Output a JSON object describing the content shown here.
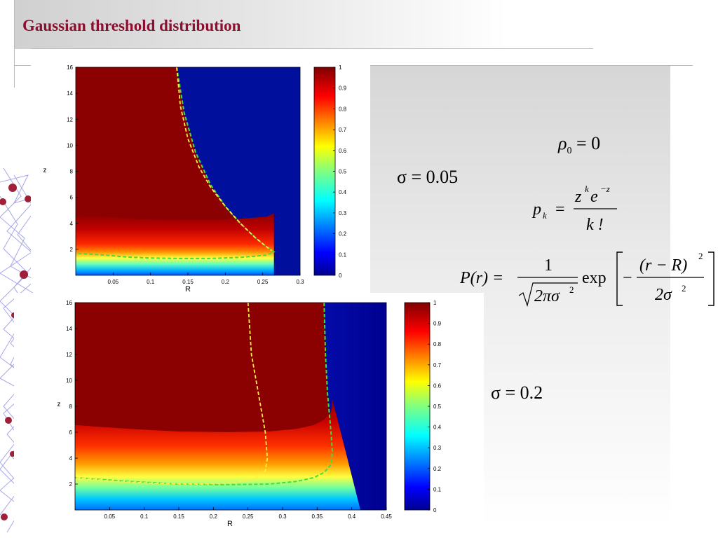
{
  "slide": {
    "title": "Gaussian threshold distribution"
  },
  "formulas": {
    "rho0": {
      "lhs": "ρ",
      "sub": "0",
      "rhs": "= 0"
    },
    "sigma_top": "σ = 0.05",
    "sigma_bottom": "σ = 0.2",
    "pk": {
      "lhs": "p",
      "sub": "k",
      "num": "z",
      "num_sup_k": "k",
      "num_e": "e",
      "num_sup": "−z",
      "den": "k !"
    },
    "gaussian": {
      "lhs": "P(r) =",
      "one": "1",
      "sqrt_inner": "2πσ",
      "sq": "2",
      "exp": "exp",
      "minus": "−",
      "num": "(r − R)",
      "den": "2σ"
    }
  },
  "chart_data": [
    {
      "type": "heatmap",
      "xlabel": "R",
      "ylabel": "z",
      "xlim": [
        0,
        0.3
      ],
      "ylim": [
        0,
        16
      ],
      "x_ticks": [
        0.05,
        0.1,
        0.15,
        0.2,
        0.25,
        0.3
      ],
      "x_tick_labels": [
        "0.05",
        "0.1",
        "0.15",
        "0.2",
        "0.25",
        "0.3"
      ],
      "y_ticks": [
        2,
        4,
        6,
        8,
        10,
        12,
        14,
        16
      ],
      "y_tick_labels": [
        "2",
        "4",
        "6",
        "8",
        "10",
        "12",
        "14",
        "16"
      ],
      "colorbar": {
        "range": [
          0,
          1
        ],
        "ticks": [
          "0",
          "0.1",
          "0.2",
          "0.3",
          "0.4",
          "0.5",
          "0.6",
          "0.7",
          "0.8",
          "0.9",
          "1"
        ]
      },
      "high_region_boundary": {
        "R": [
          0.135,
          0.145,
          0.16,
          0.18,
          0.2,
          0.22,
          0.24,
          0.255,
          0.265,
          0.255,
          0.22,
          0.18,
          0.14,
          0.1,
          0.07,
          0.04,
          0.0
        ],
        "z": [
          16,
          12.5,
          9.5,
          7,
          5.3,
          4.0,
          2.9,
          2.2,
          1.8,
          1.55,
          1.38,
          1.3,
          1.3,
          1.33,
          1.4,
          1.55,
          1.7
        ]
      },
      "yellow_curve": {
        "R": [
          0.135,
          0.14,
          0.15,
          0.165,
          0.18,
          0.2,
          0.22,
          0.24,
          0.255,
          0.262
        ],
        "z": [
          16,
          13,
          10.5,
          8.3,
          6.8,
          5.3,
          4.0,
          2.9,
          2.2,
          1.9
        ]
      }
    },
    {
      "type": "heatmap",
      "xlabel": "R",
      "ylabel": "z",
      "xlim": [
        0,
        0.45
      ],
      "ylim": [
        0,
        16
      ],
      "x_ticks": [
        0.05,
        0.1,
        0.15,
        0.2,
        0.25,
        0.3,
        0.35,
        0.4,
        0.45
      ],
      "x_tick_labels": [
        "0.05",
        "0.1",
        "0.15",
        "0.2",
        "0.25",
        "0.3",
        "0.35",
        "0.4",
        "0.45"
      ],
      "y_ticks": [
        2,
        4,
        6,
        8,
        10,
        12,
        14,
        16
      ],
      "y_tick_labels": [
        "2",
        "4",
        "6",
        "8",
        "10",
        "12",
        "14",
        "16"
      ],
      "colorbar": {
        "range": [
          0,
          1
        ],
        "ticks": [
          "0",
          "0.1",
          "0.2",
          "0.3",
          "0.4",
          "0.5",
          "0.6",
          "0.7",
          "0.8",
          "0.9",
          "1"
        ]
      },
      "high_region_boundary": {
        "R": [
          0.36,
          0.362,
          0.365,
          0.37,
          0.372,
          0.37,
          0.36,
          0.345,
          0.32,
          0.28,
          0.22,
          0.15,
          0.08,
          0.0
        ],
        "z": [
          16,
          12,
          9,
          6,
          4.5,
          3.5,
          2.9,
          2.5,
          2.2,
          2.0,
          1.95,
          2.0,
          2.2,
          2.5
        ]
      },
      "yellow_curve": {
        "R": [
          0.25,
          0.255,
          0.265,
          0.275,
          0.278,
          0.275,
          0.26,
          0.23,
          0.18,
          0.12,
          0.06,
          0.0
        ],
        "z": [
          16,
          12,
          9,
          6,
          4,
          3,
          2.4,
          2.1,
          2.0,
          2.05,
          2.2,
          2.5
        ]
      }
    }
  ]
}
